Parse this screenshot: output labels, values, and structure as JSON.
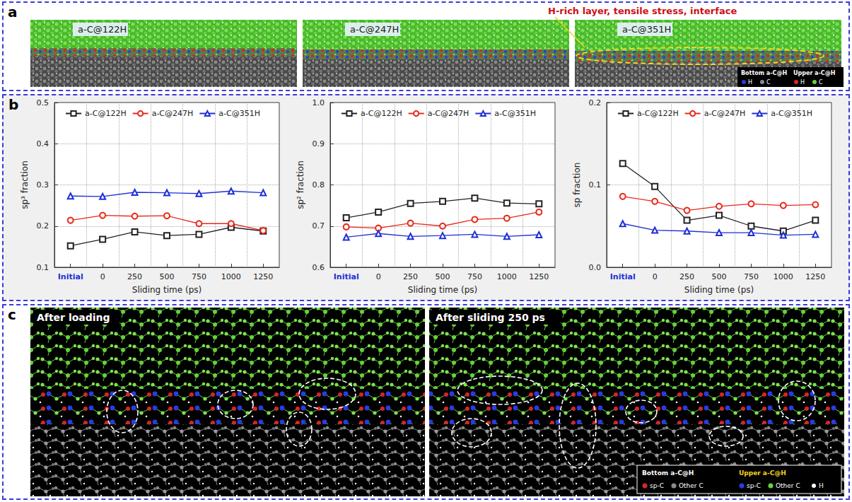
{
  "panels": {
    "a": {
      "letter": "a",
      "annotation": "H-rich layer, tensile stress, interface",
      "snapshots": [
        "a-C@122H",
        "a-C@247H",
        "a-C@351H"
      ],
      "key": {
        "bottom": {
          "title": "Bottom a-C@H",
          "items": [
            "H",
            "C"
          ]
        },
        "upper": {
          "title": "Upper a-C@H",
          "items": [
            "H",
            "C"
          ]
        }
      }
    },
    "b": {
      "letter": "b"
    },
    "c": {
      "letter": "c",
      "snapshots": [
        "After loading",
        "After sliding 250 ps"
      ],
      "key": {
        "bottom": {
          "title": "Bottom a-C@H",
          "items": [
            "sp-C",
            "Other C"
          ]
        },
        "upper": {
          "title": "Upper a-C@H",
          "items": [
            "sp-C",
            "Other C"
          ]
        },
        "extra": [
          "H"
        ]
      }
    }
  },
  "chart_data": [
    {
      "type": "line",
      "y_label": "sp³ fraction",
      "x_label": "Sliding time (ps)",
      "categories": [
        "Initial",
        "0",
        "250",
        "500",
        "750",
        "1000",
        "1250"
      ],
      "series": [
        {
          "name": "a-C@122H",
          "color": "#222222",
          "marker": "square",
          "values": [
            0.152,
            0.168,
            0.186,
            0.177,
            0.18,
            0.197,
            0.188
          ]
        },
        {
          "name": "a-C@247H",
          "color": "#e8291c",
          "marker": "circle",
          "values": [
            0.214,
            0.226,
            0.224,
            0.225,
            0.206,
            0.206,
            0.189
          ]
        },
        {
          "name": "a-C@351H",
          "color": "#1f2fd6",
          "marker": "triangle",
          "values": [
            0.273,
            0.272,
            0.282,
            0.281,
            0.279,
            0.285,
            0.281
          ]
        }
      ],
      "ylim": [
        0.1,
        0.5
      ],
      "yticks": [
        0.1,
        0.2,
        0.3,
        0.4,
        0.5
      ],
      "grid": true,
      "legend": "top"
    },
    {
      "type": "line",
      "y_label": "sp² fraction",
      "x_label": "Sliding time (ps)",
      "categories": [
        "Initial",
        "0",
        "250",
        "500",
        "750",
        "1000",
        "1250"
      ],
      "series": [
        {
          "name": "a-C@122H",
          "color": "#222222",
          "marker": "square",
          "values": [
            0.72,
            0.734,
            0.755,
            0.76,
            0.768,
            0.756,
            0.754
          ]
        },
        {
          "name": "a-C@247H",
          "color": "#e8291c",
          "marker": "circle",
          "values": [
            0.698,
            0.695,
            0.707,
            0.7,
            0.716,
            0.719,
            0.734
          ]
        },
        {
          "name": "a-C@351H",
          "color": "#1f2fd6",
          "marker": "triangle",
          "values": [
            0.673,
            0.682,
            0.675,
            0.677,
            0.68,
            0.675,
            0.679
          ]
        }
      ],
      "ylim": [
        0.6,
        1.0
      ],
      "yticks": [
        0.6,
        0.7,
        0.8,
        0.9,
        {
          "value": 1.0,
          "label": "1.0"
        }
      ],
      "grid": true,
      "legend": "top"
    },
    {
      "type": "line",
      "y_label": "sp fraction",
      "x_label": "Sliding time (ps)",
      "categories": [
        "Initial",
        "0",
        "250",
        "500",
        "750",
        "1000",
        "1250"
      ],
      "series": [
        {
          "name": "a-C@122H",
          "color": "#222222",
          "marker": "square",
          "values": [
            0.126,
            0.098,
            0.057,
            0.063,
            0.05,
            0.044,
            0.057
          ]
        },
        {
          "name": "a-C@247H",
          "color": "#e8291c",
          "marker": "circle",
          "values": [
            0.086,
            0.08,
            0.069,
            0.074,
            0.077,
            0.075,
            0.076
          ]
        },
        {
          "name": "a-C@351H",
          "color": "#1f2fd6",
          "marker": "triangle",
          "values": [
            0.053,
            0.045,
            0.044,
            0.042,
            0.042,
            0.039,
            0.04
          ]
        }
      ],
      "ylim": [
        0.0,
        0.2
      ],
      "yticks": [
        {
          "value": 0.0,
          "label": "0.0"
        },
        0.1,
        0.2
      ],
      "grid": true,
      "legend": "top"
    }
  ]
}
